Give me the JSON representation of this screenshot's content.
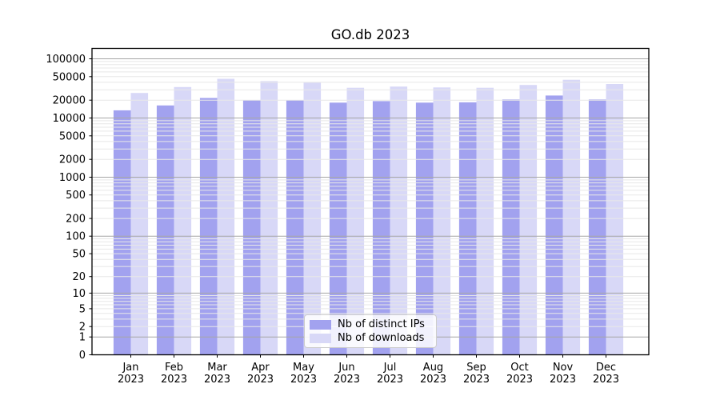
{
  "chart_data": {
    "type": "bar",
    "title": "GO.db 2023",
    "yscale": "log1p",
    "xlabel": "",
    "ylabel": "",
    "categories": [
      "Jan\n2023",
      "Feb\n2023",
      "Mar\n2023",
      "Apr\n2023",
      "May\n2023",
      "Jun\n2023",
      "Jul\n2023",
      "Aug\n2023",
      "Sep\n2023",
      "Oct\n2023",
      "Nov\n2023",
      "Dec\n2023"
    ],
    "series": [
      {
        "name": "Nb of distinct IPs",
        "color": "#a2a2ef",
        "values": [
          13500,
          16300,
          21800,
          20000,
          20100,
          18200,
          19300,
          18200,
          18400,
          20600,
          24000,
          20600
        ]
      },
      {
        "name": "Nb of downloads",
        "color": "#d8d8f7",
        "values": [
          26500,
          33300,
          46000,
          42000,
          40200,
          32400,
          34000,
          32800,
          32400,
          36100,
          44200,
          37500
        ]
      }
    ],
    "y_ticks": [
      0,
      1,
      2,
      5,
      10,
      20,
      50,
      100,
      200,
      500,
      1000,
      2000,
      5000,
      10000,
      20000,
      50000,
      100000
    ],
    "ylim": [
      0,
      150000
    ],
    "grid": {
      "on": true,
      "major_color": "#a6a6a6",
      "minor_color": "#e7e7e7",
      "position": "above-bars"
    },
    "legend_position": "lower-center",
    "axis_color": "#000000",
    "tick_label_color": "#000000"
  }
}
